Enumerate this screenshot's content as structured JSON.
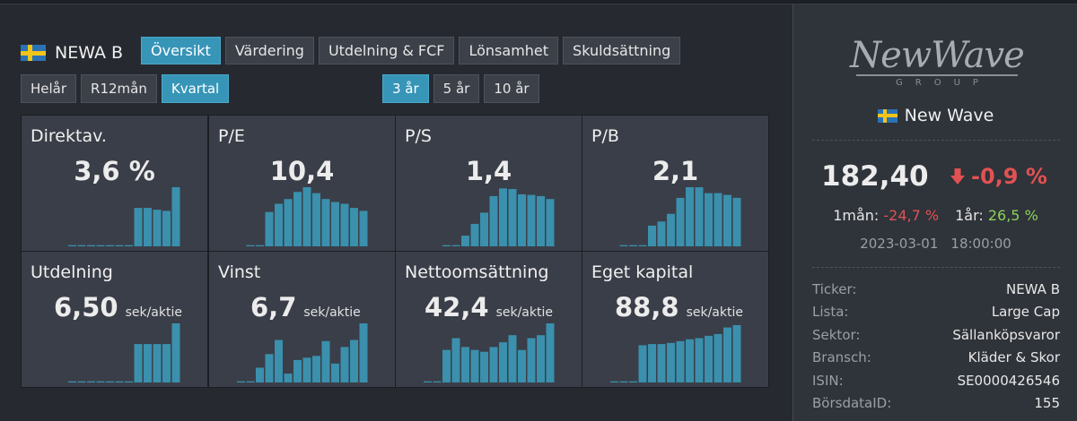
{
  "header": {
    "ticker": "NEWA B",
    "tabs": [
      "Översikt",
      "Värdering",
      "Utdelning & FCF",
      "Lönsamhet",
      "Skuldsättning"
    ],
    "active_tab": "Översikt",
    "periods": [
      "Helår",
      "R12mån",
      "Kvartal"
    ],
    "active_period": "Kvartal",
    "ranges": [
      "3 år",
      "5 år",
      "10 år"
    ],
    "active_range": "3 år"
  },
  "metrics": [
    {
      "title": "Direktav.",
      "value": "3,6 %",
      "unit": "",
      "bars": [
        0.02,
        0.02,
        0.02,
        0.02,
        0.02,
        0.02,
        0.02,
        0.65,
        0.65,
        0.62,
        0.6,
        1.0
      ]
    },
    {
      "title": "P/E",
      "value": "10,4",
      "unit": "",
      "bars": [
        0.02,
        0.02,
        0.58,
        0.72,
        0.8,
        0.92,
        1.0,
        0.9,
        0.8,
        0.75,
        0.72,
        0.65,
        0.6
      ]
    },
    {
      "title": "P/S",
      "value": "1,4",
      "unit": "",
      "bars": [
        0.02,
        0.02,
        0.18,
        0.38,
        0.57,
        0.85,
        0.98,
        0.97,
        0.88,
        0.87,
        0.85,
        0.8
      ]
    },
    {
      "title": "P/B",
      "value": "2,1",
      "unit": "",
      "bars": [
        0.02,
        0.02,
        0.02,
        0.35,
        0.42,
        0.55,
        0.82,
        1.0,
        1.0,
        0.9,
        0.9,
        0.87,
        0.82
      ]
    },
    {
      "title": "Utdelning",
      "value": "6,50",
      "unit": "sek/aktie",
      "bars": [
        0.02,
        0.02,
        0.02,
        0.02,
        0.02,
        0.02,
        0.02,
        0.65,
        0.65,
        0.65,
        0.65,
        1.0
      ]
    },
    {
      "title": "Vinst",
      "value": "6,7",
      "unit": "sek/aktie",
      "bars": [
        0.02,
        0.02,
        0.25,
        0.48,
        0.72,
        0.15,
        0.38,
        0.42,
        0.45,
        0.7,
        0.32,
        0.6,
        0.72,
        1.0
      ]
    },
    {
      "title": "Nettoomsättning",
      "value": "42,4",
      "unit": "sek/aktie",
      "bars": [
        0.02,
        0.02,
        0.55,
        0.75,
        0.6,
        0.55,
        0.52,
        0.6,
        0.68,
        0.8,
        0.55,
        0.75,
        0.8,
        1.0
      ]
    },
    {
      "title": "Eget kapital",
      "value": "88,8",
      "unit": "sek/aktie",
      "bars": [
        0.02,
        0.02,
        0.02,
        0.63,
        0.65,
        0.65,
        0.67,
        0.7,
        0.73,
        0.75,
        0.79,
        0.82,
        0.93,
        0.97
      ]
    }
  ],
  "sidebar": {
    "logo_text": "NewWave",
    "logo_sub": "GROUP",
    "company": "New Wave",
    "price": "182,40",
    "change": "-0,9 %",
    "perf_1m_label": "1mån:",
    "perf_1m": "-24,7 %",
    "perf_1y_label": "1år:",
    "perf_1y": "26,5 %",
    "date": "2023-03-01",
    "time": "18:00:00",
    "info": [
      {
        "k": "Ticker:",
        "v": "NEWA B"
      },
      {
        "k": "Lista:",
        "v": "Large Cap"
      },
      {
        "k": "Sektor:",
        "v": "Sällanköpsvaror"
      },
      {
        "k": "Bransch:",
        "v": "Kläder & Skor"
      },
      {
        "k": "ISIN:",
        "v": "SE0000426546"
      },
      {
        "k": "BörsdataID:",
        "v": "155"
      }
    ],
    "colors": {
      "down": "#e05252",
      "up": "#8ad15a",
      "accent": "#3795b8",
      "bar": "#3a90ad"
    }
  }
}
